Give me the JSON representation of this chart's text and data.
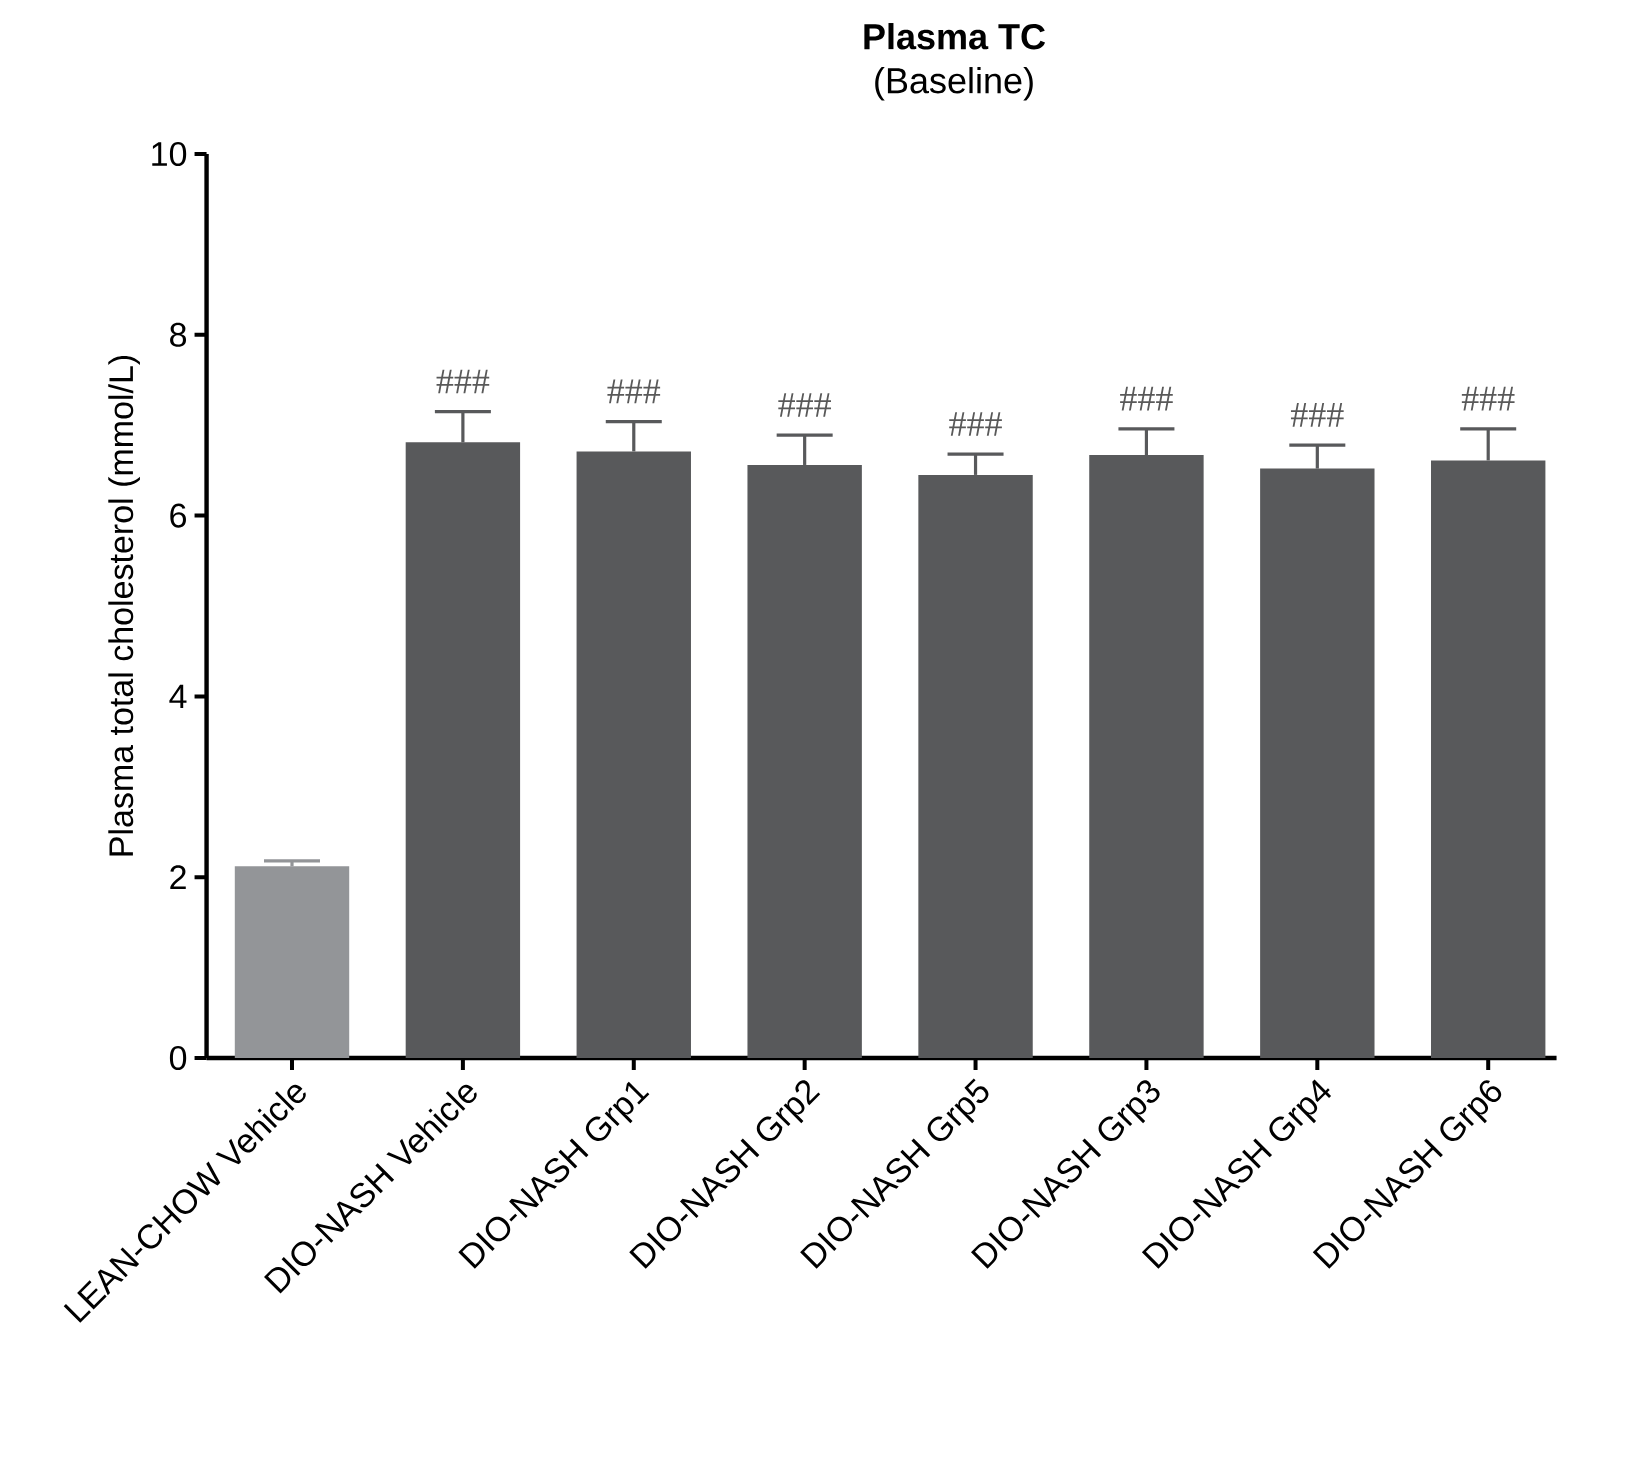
{
  "chart_data": {
    "type": "bar",
    "title": "Plasma TC",
    "subtitle": "(Baseline)",
    "ylabel": "Plasma total cholesterol (mmol/L)",
    "categories": [
      "LEAN-CHOW Vehicle",
      "DIO-NASH Vehicle",
      "DIO-NASH Grp1",
      "DIO-NASH Grp2",
      "DIO-NASH Grp5",
      "DIO-NASH Grp3",
      "DIO-NASH Grp4",
      "DIO-NASH Grp6"
    ],
    "values": [
      2.12,
      6.81,
      6.71,
      6.56,
      6.45,
      6.67,
      6.52,
      6.61
    ],
    "colors": [
      "#939598",
      "#58595b",
      "#58595b",
      "#58595b",
      "#58595b",
      "#58595b",
      "#58595b",
      "#58595b"
    ],
    "errors": [
      [
        2.12,
        2.18
      ],
      [
        6.81,
        7.15
      ],
      [
        6.71,
        7.04
      ],
      [
        6.56,
        6.89
      ],
      [
        6.45,
        6.68
      ],
      [
        6.67,
        6.96
      ],
      [
        6.52,
        6.78
      ],
      [
        6.61,
        6.96
      ]
    ],
    "ylim": [
      0,
      10
    ],
    "yticks": [
      0,
      2,
      4,
      6,
      8,
      10
    ],
    "grid": false,
    "annotations": [
      "###",
      "###",
      "###",
      "###",
      "###",
      "###",
      "###"
    ]
  }
}
